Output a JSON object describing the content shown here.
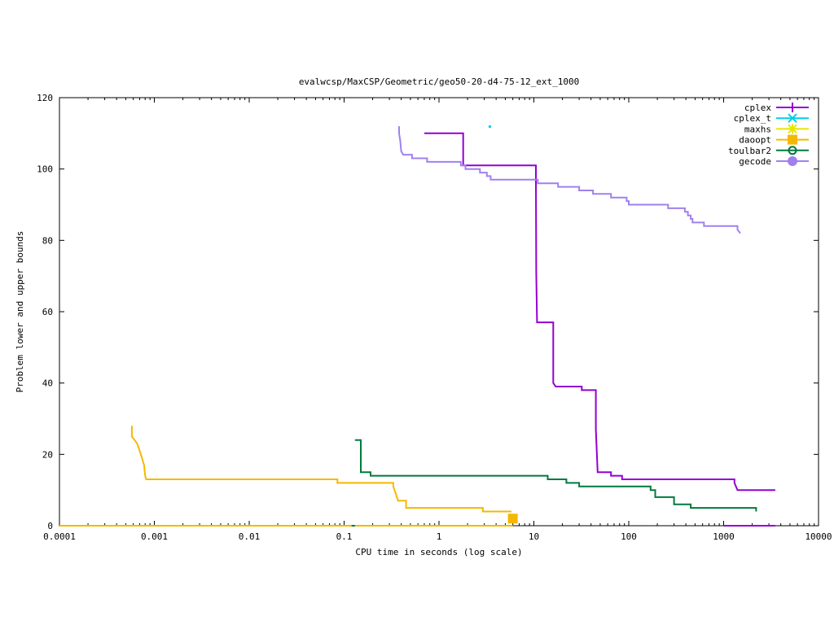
{
  "chart_data": {
    "type": "line",
    "title": "evalwcsp/MaxCSP/Geometric/geo50-20-d4-75-12_ext_1000",
    "xlabel": "CPU time in seconds (log scale)",
    "ylabel": "Problem lower and upper bounds",
    "xscale": "log",
    "xlim": [
      0.0001,
      10000
    ],
    "ylim": [
      0,
      120
    ],
    "x_ticks": [
      {
        "value": 0.0001,
        "label": "0.0001"
      },
      {
        "value": 0.001,
        "label": "0.001"
      },
      {
        "value": 0.01,
        "label": "0.01"
      },
      {
        "value": 0.1,
        "label": "0.1"
      },
      {
        "value": 1,
        "label": "1"
      },
      {
        "value": 10,
        "label": "10"
      },
      {
        "value": 100,
        "label": "100"
      },
      {
        "value": 1000,
        "label": "1000"
      },
      {
        "value": 10000,
        "label": "10000"
      }
    ],
    "y_ticks": [
      {
        "value": 0,
        "label": "0"
      },
      {
        "value": 20,
        "label": "20"
      },
      {
        "value": 40,
        "label": "40"
      },
      {
        "value": 60,
        "label": "60"
      },
      {
        "value": 80,
        "label": "80"
      },
      {
        "value": 100,
        "label": "100"
      },
      {
        "value": 120,
        "label": "120"
      }
    ],
    "grid": false,
    "legend_position": "top-right",
    "series": [
      {
        "name": "cplex",
        "color": "#9400d3",
        "marker": "plus",
        "steps": [
          [
            0.7,
            110
          ],
          [
            1.8,
            110
          ],
          [
            1.8,
            101
          ],
          [
            10.5,
            101
          ],
          [
            10.5,
            97
          ],
          [
            10.6,
            71
          ],
          [
            10.8,
            57
          ],
          [
            16,
            57
          ],
          [
            16,
            40
          ],
          [
            17,
            39
          ],
          [
            32,
            39
          ],
          [
            32,
            38
          ],
          [
            45,
            38
          ],
          [
            45,
            27
          ],
          [
            47,
            15
          ],
          [
            65,
            15
          ],
          [
            65,
            14
          ],
          [
            85,
            14
          ],
          [
            85,
            13
          ],
          [
            1300,
            13
          ],
          [
            1300,
            12
          ],
          [
            1400,
            10
          ],
          [
            3500,
            10
          ]
        ],
        "lower": [
          [
            1000,
            0
          ],
          [
            3500,
            0
          ]
        ]
      },
      {
        "name": "cplex_t",
        "color": "#00d0e0",
        "marker": "x",
        "points": [
          [
            3.4,
            112
          ]
        ]
      },
      {
        "name": "maxhs",
        "color": "#e6e600",
        "marker": "star",
        "steps": []
      },
      {
        "name": "daoopt",
        "color": "#f5b800",
        "marker": "square",
        "steps": [
          [
            0.00058,
            28
          ],
          [
            0.00058,
            25
          ],
          [
            0.00062,
            24
          ],
          [
            0.00066,
            23
          ],
          [
            0.00068,
            22
          ],
          [
            0.0007,
            21
          ],
          [
            0.00072,
            20
          ],
          [
            0.00074,
            19
          ],
          [
            0.00076,
            18
          ],
          [
            0.00078,
            17
          ],
          [
            0.0008,
            14
          ],
          [
            0.00082,
            13
          ],
          [
            0.085,
            13
          ],
          [
            0.085,
            12
          ],
          [
            0.33,
            12
          ],
          [
            0.33,
            11
          ],
          [
            0.35,
            9
          ],
          [
            0.36,
            8
          ],
          [
            0.37,
            7
          ],
          [
            0.45,
            7
          ],
          [
            0.45,
            5
          ],
          [
            2.9,
            5
          ],
          [
            2.9,
            4
          ],
          [
            5.8,
            4
          ]
        ],
        "lower": [
          [
            0.0001,
            0
          ],
          [
            6,
            0
          ]
        ],
        "end_marker": [
          6,
          2
        ]
      },
      {
        "name": "toulbar2",
        "color": "#007a3d",
        "marker": "circle",
        "steps": [
          [
            0.13,
            24
          ],
          [
            0.15,
            24
          ],
          [
            0.15,
            15
          ],
          [
            0.19,
            15
          ],
          [
            0.19,
            14
          ],
          [
            14,
            14
          ],
          [
            14,
            13
          ],
          [
            22,
            13
          ],
          [
            22,
            12
          ],
          [
            30,
            12
          ],
          [
            30,
            11
          ],
          [
            170,
            11
          ],
          [
            170,
            10
          ],
          [
            190,
            10
          ],
          [
            190,
            8
          ],
          [
            300,
            8
          ],
          [
            300,
            6
          ],
          [
            450,
            6
          ],
          [
            450,
            5
          ],
          [
            2200,
            5
          ],
          [
            2200,
            4
          ]
        ],
        "lower": [
          [
            0.12,
            0
          ],
          [
            0.13,
            0
          ]
        ]
      },
      {
        "name": "gecode",
        "color": "#a080f0",
        "marker": "filled-circle",
        "steps": [
          [
            0.38,
            112
          ],
          [
            0.38,
            110
          ],
          [
            0.39,
            108
          ],
          [
            0.4,
            105
          ],
          [
            0.42,
            104
          ],
          [
            0.52,
            104
          ],
          [
            0.52,
            103
          ],
          [
            0.75,
            103
          ],
          [
            0.75,
            102
          ],
          [
            1.7,
            102
          ],
          [
            1.7,
            101
          ],
          [
            1.9,
            101
          ],
          [
            1.9,
            100
          ],
          [
            2.7,
            100
          ],
          [
            2.7,
            99
          ],
          [
            3.2,
            99
          ],
          [
            3.2,
            98
          ],
          [
            3.5,
            98
          ],
          [
            3.5,
            97
          ],
          [
            11,
            97
          ],
          [
            11,
            96
          ],
          [
            18,
            96
          ],
          [
            18,
            95
          ],
          [
            30,
            95
          ],
          [
            30,
            94
          ],
          [
            42,
            94
          ],
          [
            42,
            93
          ],
          [
            65,
            93
          ],
          [
            65,
            92
          ],
          [
            95,
            92
          ],
          [
            95,
            91
          ],
          [
            100,
            91
          ],
          [
            100,
            90
          ],
          [
            260,
            90
          ],
          [
            260,
            89
          ],
          [
            390,
            89
          ],
          [
            390,
            88
          ],
          [
            420,
            88
          ],
          [
            420,
            87
          ],
          [
            450,
            87
          ],
          [
            450,
            86
          ],
          [
            470,
            86
          ],
          [
            470,
            85
          ],
          [
            620,
            85
          ],
          [
            620,
            84
          ],
          [
            1400,
            84
          ],
          [
            1400,
            83
          ],
          [
            1500,
            82
          ]
        ]
      }
    ]
  }
}
